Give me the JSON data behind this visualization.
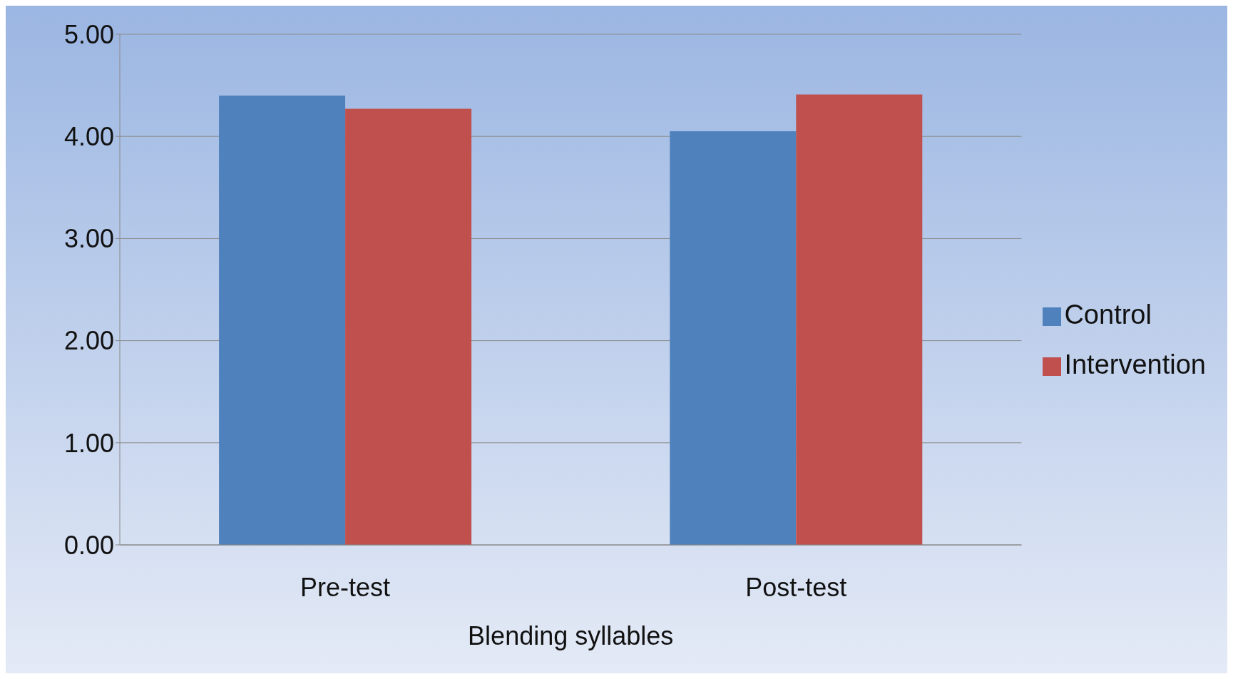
{
  "chart_data": {
    "type": "bar",
    "categories": [
      "Pre-test",
      "Post-test"
    ],
    "xlabel": "Blending syllables",
    "series": [
      {
        "name": "Control",
        "color": "#4f81bd",
        "values": [
          4.4,
          4.05
        ]
      },
      {
        "name": "Intervention",
        "color": "#c0504d",
        "values": [
          4.27,
          4.41
        ]
      }
    ],
    "ylim": [
      0,
      5
    ],
    "yticks": [
      {
        "value": 0,
        "label": "0.00"
      },
      {
        "value": 1,
        "label": "1.00"
      },
      {
        "value": 2,
        "label": "2.00"
      },
      {
        "value": 3,
        "label": "3.00"
      },
      {
        "value": 4,
        "label": "4.00"
      },
      {
        "value": 5,
        "label": "5.00"
      }
    ],
    "grid": "y",
    "legend": "right"
  }
}
